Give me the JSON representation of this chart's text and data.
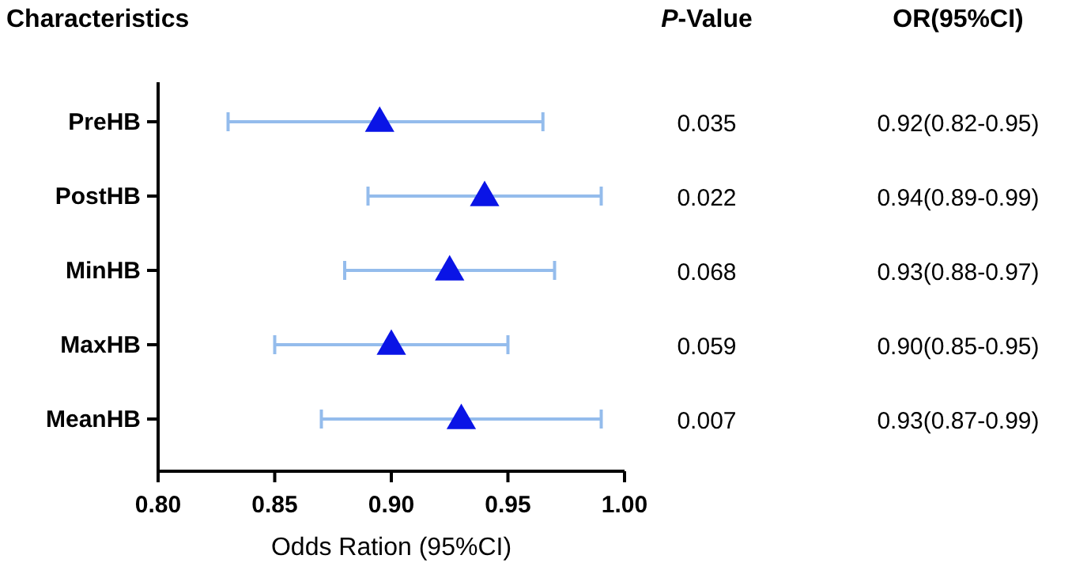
{
  "chart_data": {
    "type": "scatter",
    "orientation": "horizontal",
    "ylabel": "Characteristics",
    "xlabel": "Odds Ration (95%CI)",
    "categories": [
      "PreHB",
      "PostHB",
      "MinHB",
      "MaxHB",
      "MeanHB"
    ],
    "series": [
      {
        "color": "#0a14e6",
        "values": [
          0.895,
          0.94,
          0.925,
          0.9,
          0.93
        ],
        "errors": [
          [
            0.83,
            0.965
          ],
          [
            0.89,
            0.99
          ],
          [
            0.88,
            0.97
          ],
          [
            0.85,
            0.95
          ],
          [
            0.87,
            0.99
          ]
        ]
      }
    ],
    "marker": "triangle",
    "xlim": [
      0.8,
      1.0
    ],
    "xticks": [
      {
        "value": 0.8,
        "label": "0.80"
      },
      {
        "value": 0.85,
        "label": "0.85"
      },
      {
        "value": 0.9,
        "label": "0.90"
      },
      {
        "value": 0.95,
        "label": "0.95"
      },
      {
        "value": 1.0,
        "label": "1.00"
      }
    ],
    "grid": false,
    "annotations": [
      "P-Value",
      "OR(95%CI)",
      "0.035",
      "0.92(0.82-0.95)",
      "0.022",
      "0.94(0.89-0.99)",
      "0.068",
      "0.93(0.88-0.97)",
      "0.059",
      "0.90(0.85-0.95)",
      "0.007",
      "0.93(0.87-0.99)"
    ]
  }
}
